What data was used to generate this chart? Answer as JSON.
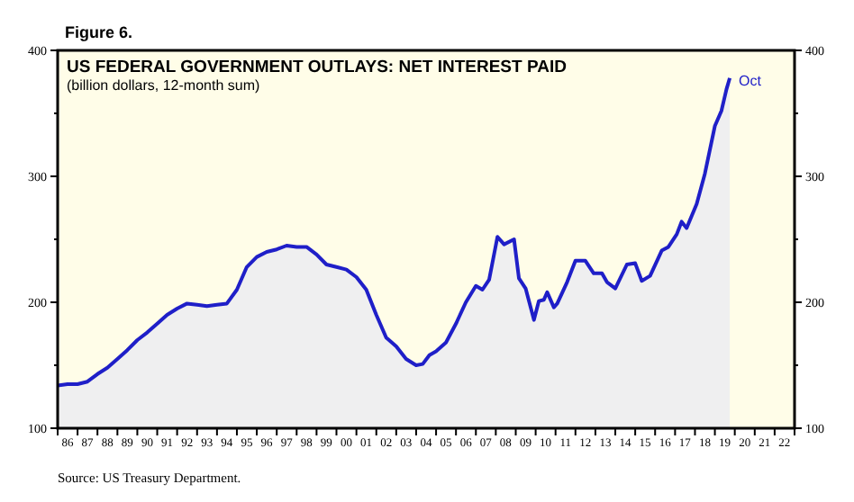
{
  "chart_data": {
    "type": "area",
    "title": "US FEDERAL GOVERNMENT OUTLAYS: NET INTEREST PAID",
    "subtitle": "(billion dollars, 12-month sum)",
    "annotations": [
      "Figure 6.",
      {
        "text": "Oct",
        "x": "2019-10",
        "y": 378
      },
      "Source: US Treasury Department."
    ],
    "series": [
      {
        "color": "#1f1fc8",
        "x": [
          "1986-01",
          "1986-07",
          "1987-01",
          "1987-07",
          "1988-01",
          "1988-07",
          "1989-01",
          "1989-07",
          "1990-01",
          "1990-07",
          "1991-01",
          "1991-07",
          "1992-01",
          "1992-07",
          "1993-01",
          "1993-07",
          "1994-01",
          "1994-07",
          "1995-01",
          "1995-07",
          "1996-01",
          "1996-07",
          "1997-01",
          "1997-07",
          "1998-01",
          "1998-07",
          "1999-01",
          "1999-07",
          "2000-01",
          "2000-07",
          "2001-01",
          "2001-07",
          "2002-01",
          "2002-07",
          "2003-01",
          "2003-07",
          "2004-01",
          "2004-05",
          "2004-09",
          "2005-01",
          "2005-07",
          "2006-01",
          "2006-07",
          "2007-01",
          "2007-05",
          "2007-09",
          "2008-02",
          "2008-06",
          "2008-12",
          "2009-03",
          "2009-07",
          "2009-12",
          "2010-03",
          "2010-06",
          "2010-08",
          "2010-12",
          "2011-02",
          "2011-08",
          "2012-01",
          "2012-07",
          "2012-12",
          "2013-05",
          "2013-08",
          "2014-01",
          "2014-08",
          "2015-01",
          "2015-05",
          "2015-10",
          "2016-05",
          "2016-09",
          "2017-02",
          "2017-05",
          "2017-08",
          "2018-02",
          "2018-07",
          "2019-01",
          "2019-05",
          "2019-08",
          "2019-10"
        ],
        "values": [
          134,
          135,
          135,
          137,
          143,
          148,
          155,
          162,
          170,
          176,
          183,
          190,
          195,
          199,
          198,
          197,
          198,
          199,
          210,
          228,
          236,
          240,
          242,
          245,
          244,
          244,
          238,
          230,
          228,
          226,
          220,
          210,
          190,
          172,
          165,
          155,
          150,
          151,
          158,
          161,
          168,
          183,
          200,
          213,
          210,
          218,
          252,
          246,
          250,
          219,
          211,
          186,
          201,
          202,
          208,
          196,
          199,
          216,
          233,
          233,
          223,
          223,
          216,
          211,
          230,
          231,
          217,
          221,
          241,
          244,
          254,
          264,
          259,
          278,
          302,
          340,
          352,
          369,
          378
        ]
      }
    ],
    "xlim": [
      "1986-01",
      "2023-01"
    ],
    "xticks": [
      {
        "value": "1986-01",
        "label": null
      },
      {
        "value": "1986-07",
        "label": "86"
      },
      {
        "value": "1987-01",
        "label": null
      },
      {
        "value": "1987-07",
        "label": "87"
      },
      {
        "value": "1988-01",
        "label": null
      },
      {
        "value": "1988-07",
        "label": "88"
      },
      {
        "value": "1989-01",
        "label": null
      },
      {
        "value": "1989-07",
        "label": "89"
      },
      {
        "value": "1990-01",
        "label": null
      },
      {
        "value": "1990-07",
        "label": "90"
      },
      {
        "value": "1991-01",
        "label": null
      },
      {
        "value": "1991-07",
        "label": "91"
      },
      {
        "value": "1992-01",
        "label": null
      },
      {
        "value": "1992-07",
        "label": "92"
      },
      {
        "value": "1993-01",
        "label": null
      },
      {
        "value": "1993-07",
        "label": "93"
      },
      {
        "value": "1994-01",
        "label": null
      },
      {
        "value": "1994-07",
        "label": "94"
      },
      {
        "value": "1995-01",
        "label": null
      },
      {
        "value": "1995-07",
        "label": "95"
      },
      {
        "value": "1996-01",
        "label": null
      },
      {
        "value": "1996-07",
        "label": "96"
      },
      {
        "value": "1997-01",
        "label": null
      },
      {
        "value": "1997-07",
        "label": "97"
      },
      {
        "value": "1998-01",
        "label": null
      },
      {
        "value": "1998-07",
        "label": "98"
      },
      {
        "value": "1999-01",
        "label": null
      },
      {
        "value": "1999-07",
        "label": "99"
      },
      {
        "value": "2000-01",
        "label": null
      },
      {
        "value": "2000-07",
        "label": "00"
      },
      {
        "value": "2001-01",
        "label": null
      },
      {
        "value": "2001-07",
        "label": "01"
      },
      {
        "value": "2002-01",
        "label": null
      },
      {
        "value": "2002-07",
        "label": "02"
      },
      {
        "value": "2003-01",
        "label": null
      },
      {
        "value": "2003-07",
        "label": "03"
      },
      {
        "value": "2004-01",
        "label": null
      },
      {
        "value": "2004-07",
        "label": "04"
      },
      {
        "value": "2005-01",
        "label": null
      },
      {
        "value": "2005-07",
        "label": "05"
      },
      {
        "value": "2006-01",
        "label": null
      },
      {
        "value": "2006-07",
        "label": "06"
      },
      {
        "value": "2007-01",
        "label": null
      },
      {
        "value": "2007-07",
        "label": "07"
      },
      {
        "value": "2008-01",
        "label": null
      },
      {
        "value": "2008-07",
        "label": "08"
      },
      {
        "value": "2009-01",
        "label": null
      },
      {
        "value": "2009-07",
        "label": "09"
      },
      {
        "value": "2010-01",
        "label": null
      },
      {
        "value": "2010-07",
        "label": "10"
      },
      {
        "value": "2011-01",
        "label": null
      },
      {
        "value": "2011-07",
        "label": "11"
      },
      {
        "value": "2012-01",
        "label": null
      },
      {
        "value": "2012-07",
        "label": "12"
      },
      {
        "value": "2013-01",
        "label": null
      },
      {
        "value": "2013-07",
        "label": "13"
      },
      {
        "value": "2014-01",
        "label": null
      },
      {
        "value": "2014-07",
        "label": "14"
      },
      {
        "value": "2015-01",
        "label": null
      },
      {
        "value": "2015-07",
        "label": "15"
      },
      {
        "value": "2016-01",
        "label": null
      },
      {
        "value": "2016-07",
        "label": "16"
      },
      {
        "value": "2017-01",
        "label": null
      },
      {
        "value": "2017-07",
        "label": "17"
      },
      {
        "value": "2018-01",
        "label": null
      },
      {
        "value": "2018-07",
        "label": "18"
      },
      {
        "value": "2019-01",
        "label": null
      },
      {
        "value": "2019-07",
        "label": "19"
      },
      {
        "value": "2020-01",
        "label": null
      },
      {
        "value": "2020-07",
        "label": "20"
      },
      {
        "value": "2021-01",
        "label": null
      },
      {
        "value": "2021-07",
        "label": "21"
      },
      {
        "value": "2022-01",
        "label": null
      },
      {
        "value": "2022-07",
        "label": "22"
      },
      {
        "value": "2023-01",
        "label": null
      }
    ],
    "ylim": [
      100,
      400
    ],
    "yticks": [
      100,
      {
        "value": 150,
        "label": null
      },
      200,
      {
        "value": 250,
        "label": null
      },
      300,
      {
        "value": 350,
        "label": null
      },
      400
    ],
    "y2lim": [
      100,
      400
    ],
    "y2ticks": [
      100,
      {
        "value": 150,
        "label": null
      },
      200,
      {
        "value": 250,
        "label": null
      },
      300,
      {
        "value": 350,
        "label": null
      },
      400
    ],
    "grid": false
  }
}
